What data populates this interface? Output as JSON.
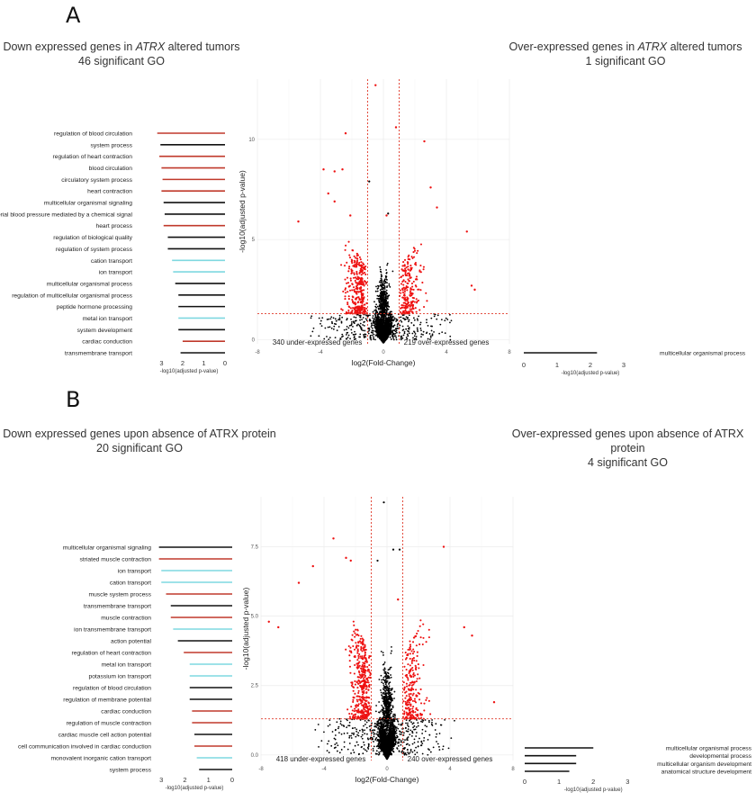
{
  "panel_a": {
    "letter": "A",
    "left_title_1_pre": "Down expressed genes in ",
    "left_title_1_em": "ATRX",
    "left_title_1_post": " altered tumors",
    "left_title_2": "46 significant GO",
    "right_title_1_pre": "Over-expressed genes in ",
    "right_title_1_em": "ATRX",
    "right_title_1_post": " altered tumors",
    "right_title_2": "1 significant GO"
  },
  "panel_b": {
    "letter": "B",
    "left_title_1": "Down expressed genes upon absence of ATRX protein",
    "left_title_2": "20 significant GO",
    "right_title_1": "Over-expressed genes upon absence of ATRX protein",
    "right_title_2": "4 significant GO"
  },
  "colors": {
    "red": "#c0392b",
    "black": "#111111",
    "cyan": "#7fd8e0",
    "point_red": "#ee1111",
    "point_black": "#000000",
    "grid": "#ececec"
  },
  "chart_data": [
    {
      "id": "A-down-go",
      "type": "bar",
      "orientation": "horizontal-reversed",
      "xlabel": "-log10(adjusted p-value)",
      "xlim": [
        0,
        3.4
      ],
      "xticks": [
        3,
        2,
        1,
        0
      ],
      "categories": [
        "regulation of blood circulation",
        "system process",
        "regulation of heart contraction",
        "blood circulation",
        "circulatory system process",
        "heart contraction",
        "multicellular organismal signaling",
        "regulation of systemic arterial blood pressure mediated by a chemical signal",
        "heart process",
        "regulation of biological quality",
        "regulation of system process",
        "cation transport",
        "ion transport",
        "multicellular organismal process",
        "regulation of multicellular organismal process",
        "peptide hormone processing",
        "metal ion transport",
        "system development",
        "cardiac conduction",
        "transmembrane transport"
      ],
      "values": [
        3.2,
        3.05,
        3.1,
        3.0,
        2.95,
        3.0,
        2.9,
        2.85,
        2.9,
        2.7,
        2.7,
        2.5,
        2.45,
        2.35,
        2.2,
        2.2,
        2.2,
        2.2,
        2.0,
        2.1
      ],
      "colors": [
        "red",
        "black",
        "red",
        "red",
        "red",
        "red",
        "black",
        "black",
        "red",
        "black",
        "black",
        "cyan",
        "cyan",
        "black",
        "black",
        "black",
        "cyan",
        "black",
        "red",
        "black"
      ]
    },
    {
      "id": "A-volcano",
      "type": "scatter",
      "xlabel": "log2(Fold-Change)",
      "ylabel": "-log10(adjusted p-value)",
      "xlim": [
        -8,
        8
      ],
      "ylim": [
        -0.2,
        13
      ],
      "xticks": [
        -8,
        -4,
        0,
        4,
        8
      ],
      "xtick_labels": [
        "-8",
        "-4",
        "0",
        "4",
        "8"
      ],
      "yticks": [
        0,
        5,
        10
      ],
      "ytick_labels": [
        "0",
        "5",
        "10"
      ],
      "vlines": [
        -1,
        1
      ],
      "hline": 1.3,
      "label_under": "340 under-expressed genes",
      "label_over": "219 over-expressed genes",
      "n_under": 340,
      "n_over": 219,
      "outliers_red": [
        [
          -0.5,
          12.7
        ],
        [
          0.8,
          10.6
        ],
        [
          2.6,
          9.9
        ],
        [
          -2.4,
          10.3
        ],
        [
          -3.8,
          8.5
        ],
        [
          -3.1,
          8.4
        ],
        [
          -2.6,
          8.5
        ],
        [
          3.0,
          7.6
        ],
        [
          -3.5,
          7.3
        ],
        [
          3.4,
          6.6
        ],
        [
          -3.1,
          6.9
        ],
        [
          -5.4,
          5.9
        ],
        [
          5.3,
          5.4
        ],
        [
          -2.1,
          6.2
        ],
        [
          0.2,
          6.2
        ],
        [
          5.6,
          2.7
        ],
        [
          5.8,
          2.5
        ]
      ],
      "outliers_black": [
        [
          -0.9,
          7.9
        ],
        [
          0.3,
          6.3
        ]
      ]
    },
    {
      "id": "A-up-go",
      "type": "bar",
      "orientation": "horizontal",
      "xlabel": "-log10(adjusted p-value)",
      "xlim": [
        0,
        3.3
      ],
      "xticks": [
        0,
        1,
        2,
        3
      ],
      "categories": [
        "multicellular organismal process"
      ],
      "values": [
        2.2
      ],
      "colors": [
        "black"
      ]
    },
    {
      "id": "B-down-go",
      "type": "bar",
      "orientation": "horizontal-reversed",
      "xlabel": "-log10(adjusted p-value)",
      "xlim": [
        0,
        3.2
      ],
      "xticks": [
        3,
        2,
        1,
        0
      ],
      "categories": [
        "multicellular organismal signaling",
        "striated muscle contraction",
        "ion transport",
        "cation transport",
        "muscle system process",
        "transmembrane transport",
        "muscle contraction",
        "ion transmembrane transport",
        "action potential",
        "regulation of heart contraction",
        "metal ion transport",
        "potassium ion transport",
        "regulation of blood circulation",
        "regulation of membrane potential",
        "cardiac conduction",
        "regulation of muscle contraction",
        "cardiac muscle cell action potential",
        "cell communication involved in cardiac conduction",
        "monovalent inorganic cation transport",
        "system process"
      ],
      "values": [
        3.1,
        3.1,
        3.0,
        3.0,
        2.8,
        2.6,
        2.6,
        2.5,
        2.3,
        2.05,
        1.8,
        1.8,
        1.8,
        1.8,
        1.7,
        1.7,
        1.6,
        1.6,
        1.5,
        1.4
      ],
      "colors": [
        "black",
        "red",
        "cyan",
        "cyan",
        "red",
        "black",
        "red",
        "cyan",
        "black",
        "red",
        "cyan",
        "cyan",
        "black",
        "black",
        "red",
        "red",
        "black",
        "red",
        "cyan",
        "black"
      ]
    },
    {
      "id": "B-volcano",
      "type": "scatter",
      "xlabel": "log2(Fold-Change)",
      "ylabel": "-log10(adjusted p-value)",
      "xlim": [
        -8,
        8
      ],
      "ylim": [
        -0.2,
        9.3
      ],
      "xticks": [
        -8,
        -4,
        0,
        4,
        8
      ],
      "xtick_labels": [
        "-8",
        "-4",
        "0",
        "4",
        "8"
      ],
      "yticks": [
        0,
        2.5,
        5,
        7.5
      ],
      "ytick_labels": [
        "0.0",
        "2.5",
        "5.0",
        "7.5"
      ],
      "vlines": [
        -1,
        1
      ],
      "hline": 1.3,
      "label_under": "418 under-expressed genes",
      "label_over": "240 over-expressed genes",
      "n_under": 418,
      "n_over": 240,
      "outliers_red": [
        [
          -3.4,
          7.8
        ],
        [
          -2.6,
          7.1
        ],
        [
          3.6,
          7.5
        ],
        [
          -4.7,
          6.8
        ],
        [
          -2.3,
          7.0
        ],
        [
          -5.6,
          6.2
        ],
        [
          4.9,
          4.6
        ],
        [
          5.4,
          4.3
        ],
        [
          6.8,
          1.9
        ],
        [
          -7.5,
          4.8
        ],
        [
          -6.9,
          4.6
        ],
        [
          0.7,
          5.6
        ]
      ],
      "outliers_black": [
        [
          -0.2,
          9.1
        ],
        [
          0.4,
          7.4
        ],
        [
          0.8,
          7.4
        ],
        [
          -0.6,
          7.0
        ]
      ]
    },
    {
      "id": "B-up-go",
      "type": "bar",
      "orientation": "horizontal",
      "xlabel": "-log10(adjusted p-value)",
      "xlim": [
        0,
        3.2
      ],
      "xticks": [
        0,
        1,
        2,
        3
      ],
      "categories": [
        "multicellular organismal process",
        "developmental process",
        "multicellular organism development",
        "anatomical structure development"
      ],
      "values": [
        2.0,
        1.5,
        1.5,
        1.3
      ],
      "colors": [
        "black",
        "black",
        "black",
        "black"
      ]
    }
  ]
}
